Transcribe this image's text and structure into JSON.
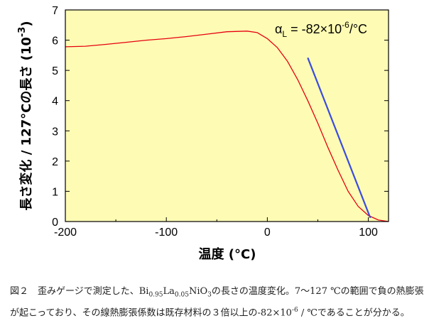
{
  "chart_data": {
    "type": "line",
    "title": "",
    "xlabel": "温度 (°C)",
    "ylabel": "長さ変化 / 127°Cの長さ (10^-3)",
    "ylabel_main": "長さ変化 / 127°Cの長さ (10",
    "ylabel_exp": "-3",
    "ylabel_close": ")",
    "xlim": [
      -200,
      120
    ],
    "ylim": [
      0,
      7
    ],
    "x_ticks": [
      "-200",
      "-100",
      "0",
      "100"
    ],
    "x_tick_values": [
      -200,
      -100,
      0,
      100
    ],
    "y_ticks": [
      "0",
      "1",
      "2",
      "3",
      "4",
      "5",
      "6",
      "7"
    ],
    "y_tick_values": [
      0,
      1,
      2,
      3,
      4,
      5,
      6,
      7
    ],
    "grid": false,
    "background_color": "#fefcb4",
    "series": [
      {
        "color": "#e60012",
        "x": [
          -200,
          -180,
          -160,
          -140,
          -120,
          -100,
          -80,
          -60,
          -40,
          -20,
          -10,
          0,
          10,
          20,
          30,
          40,
          50,
          60,
          70,
          80,
          90,
          100,
          110,
          120
        ],
        "y": [
          5.78,
          5.8,
          5.86,
          5.93,
          6.0,
          6.05,
          6.12,
          6.2,
          6.28,
          6.3,
          6.25,
          6.05,
          5.75,
          5.3,
          4.7,
          4.0,
          3.25,
          2.45,
          1.7,
          1.0,
          0.5,
          0.2,
          0.05,
          0.0
        ]
      },
      {
        "color": "#3a4be0",
        "x": [
          40,
          102
        ],
        "y": [
          5.42,
          0.12
        ]
      }
    ],
    "annotation": {
      "alpha": "α",
      "sub": "L",
      "mid": " = -82×10",
      "exp": "-6",
      "end": "/°C"
    }
  },
  "caption": {
    "lead": "図２　歪みゲージで測定した、Bi",
    "bi_sub": "0.95",
    "la": "La",
    "la_sub": "0.05",
    "nio": "NiO",
    "o_sub": "3",
    "rest1": "の長さの温度変化。7〜127 ℃の範囲で負の熱膨張が起こっており、その線熱膨張係数は既存材料の３倍以上の-82×10",
    "exp": "-6",
    "rest2": " / ℃であることが分かる。"
  }
}
